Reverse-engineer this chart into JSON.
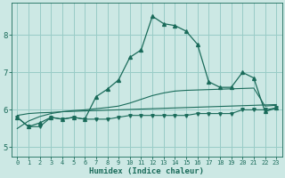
{
  "xlabel": "Humidex (Indice chaleur)",
  "bg_color": "#cce8e4",
  "grid_color": "#99ccc7",
  "line_color": "#1a6b5a",
  "xlim": [
    -0.5,
    23.5
  ],
  "ylim": [
    4.75,
    8.85
  ],
  "xticks": [
    0,
    1,
    2,
    3,
    4,
    5,
    6,
    7,
    8,
    9,
    10,
    11,
    12,
    13,
    14,
    15,
    16,
    17,
    18,
    19,
    20,
    21,
    22,
    23
  ],
  "yticks": [
    5,
    6,
    7,
    8
  ],
  "s_smooth_low": [
    5.85,
    5.9,
    5.92,
    5.93,
    5.95,
    5.96,
    5.97,
    5.98,
    5.99,
    6.0,
    6.01,
    6.02,
    6.03,
    6.04,
    6.05,
    6.06,
    6.07,
    6.08,
    6.09,
    6.1,
    6.11,
    6.12,
    6.13,
    6.14
  ],
  "s_smooth_high": [
    5.5,
    5.7,
    5.82,
    5.9,
    5.95,
    5.98,
    6.0,
    6.03,
    6.06,
    6.1,
    6.18,
    6.28,
    6.38,
    6.45,
    6.5,
    6.52,
    6.53,
    6.54,
    6.55,
    6.56,
    6.57,
    6.58,
    6.1,
    6.12
  ],
  "s_jagged_low": [
    5.8,
    5.55,
    5.55,
    5.8,
    5.75,
    5.8,
    5.75,
    5.75,
    5.75,
    5.8,
    5.85,
    5.85,
    5.85,
    5.85,
    5.85,
    5.85,
    5.9,
    5.9,
    5.9,
    5.9,
    6.0,
    6.0,
    6.0,
    6.05
  ],
  "s_jagged_high": [
    5.8,
    5.55,
    5.65,
    5.8,
    5.75,
    5.8,
    5.75,
    6.35,
    6.55,
    6.8,
    7.4,
    7.6,
    8.5,
    8.3,
    8.25,
    8.1,
    7.75,
    6.75,
    6.6,
    6.6,
    7.0,
    6.85,
    5.95,
    6.05
  ]
}
